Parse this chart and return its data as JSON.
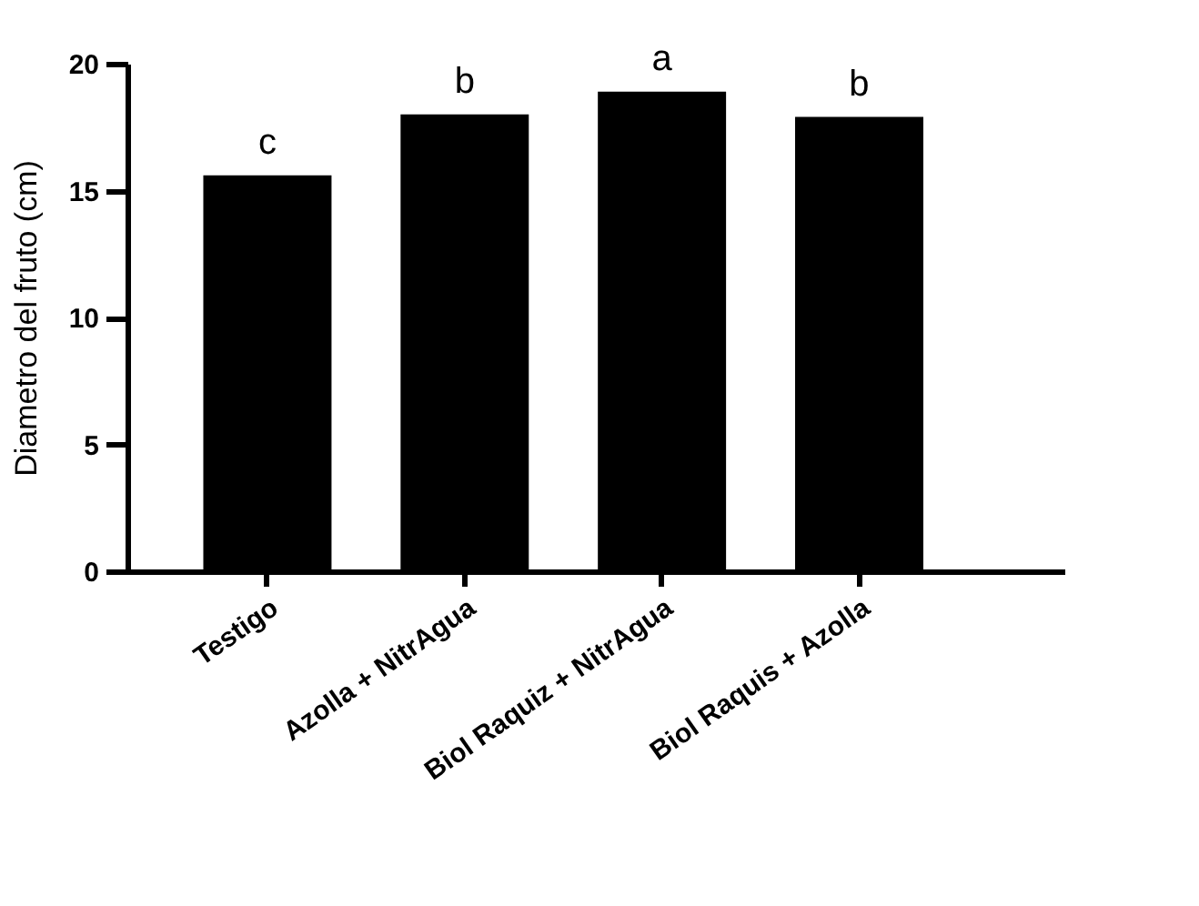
{
  "chart_data": {
    "type": "bar",
    "ylabel": "Diametro del fruto (cm)",
    "categories": [
      "Testigo",
      "Azolla + NitrAgua",
      "Biol Raquiz + NitrAgua",
      "Biol Raquis + Azolla"
    ],
    "values": [
      15.6,
      18.0,
      18.9,
      17.9
    ],
    "color": "#000000",
    "ylim": [
      0,
      20
    ],
    "yticks": [
      0,
      5,
      10,
      15,
      20
    ],
    "annotations": [
      {
        "text": "c",
        "x": "Testigo",
        "y": 15.6
      },
      {
        "text": "b",
        "x": "Azolla + NitrAgua",
        "y": 18.0
      },
      {
        "text": "a",
        "x": "Biol Raquiz + NitrAgua",
        "y": 18.9
      },
      {
        "text": "b",
        "x": "Biol Raquis + Azolla",
        "y": 17.9
      }
    ]
  }
}
